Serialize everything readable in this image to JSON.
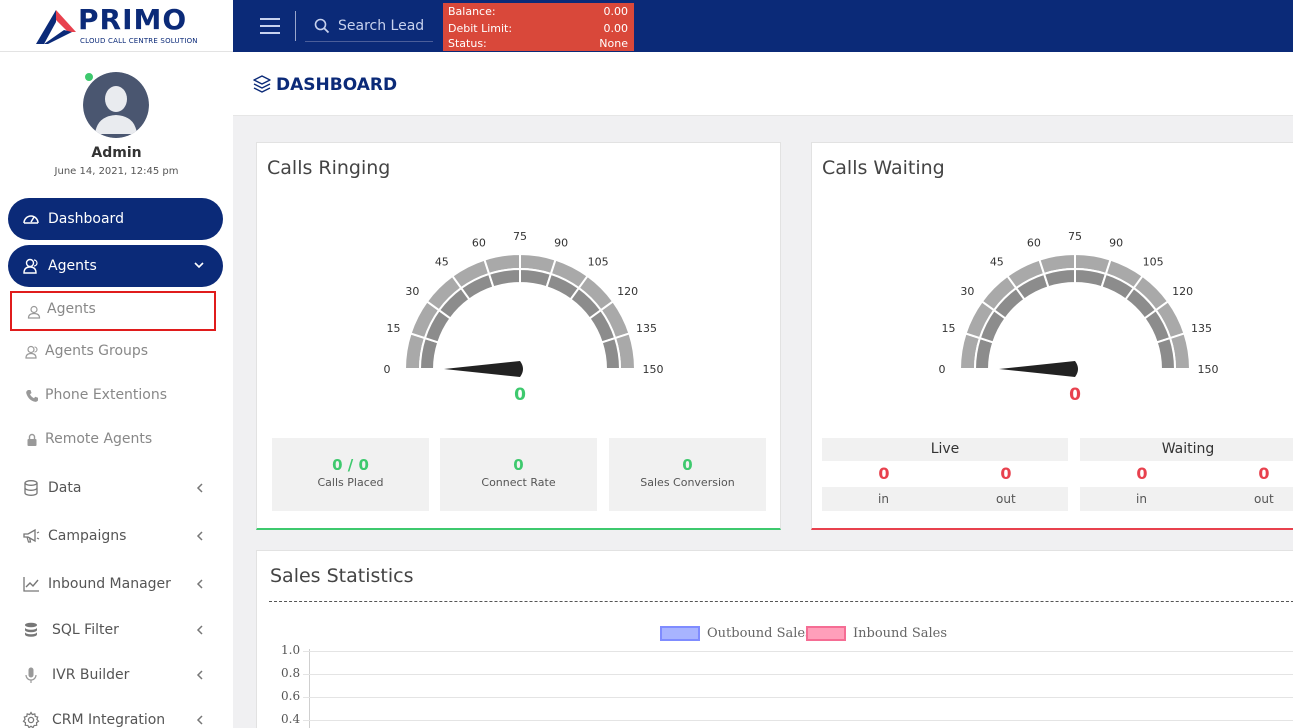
{
  "app": {
    "logo_text": "PRIMO",
    "logo_tagline": "CLOUD CALL CENTRE SOLUTION"
  },
  "topbar": {
    "search_placeholder": "Search Lead",
    "balance": [
      {
        "label": "Balance:",
        "value": "0.00"
      },
      {
        "label": "Debit Limit:",
        "value": "0.00"
      },
      {
        "label": "Status:",
        "value": "None"
      }
    ],
    "colors": {
      "bar": "#0b2a78",
      "balance_bg": "#d9483a"
    }
  },
  "user": {
    "name": "Admin",
    "datetime": "June 14, 2021, 12:45 pm",
    "status": "online"
  },
  "sidebar": {
    "dashboard": {
      "label": "Dashboard",
      "icon": "speedometer-icon"
    },
    "agents_group": {
      "label": "Agents",
      "icon": "users-icon",
      "expanded": true
    },
    "sub_items": [
      {
        "label": "Agents",
        "icon": "user-icon",
        "active": true
      },
      {
        "label": "Agents Groups",
        "icon": "users-icon"
      },
      {
        "label": "Phone Extentions",
        "icon": "phone-icon"
      },
      {
        "label": "Remote Agents",
        "icon": "lock-icon"
      }
    ],
    "items": [
      {
        "label": "Data",
        "icon": "database-icon"
      },
      {
        "label": "Campaigns",
        "icon": "megaphone-icon"
      },
      {
        "label": "Inbound Manager",
        "icon": "line-chart-icon"
      },
      {
        "label": "SQL Filter",
        "icon": "database-icon"
      },
      {
        "label": "IVR Builder",
        "icon": "microphone-icon"
      },
      {
        "label": "CRM Integration",
        "icon": "gear-icon"
      }
    ]
  },
  "page": {
    "title": "DASHBOARD",
    "icon": "layers-icon"
  },
  "calls_ringing": {
    "title": "Calls Ringing",
    "gauge": {
      "min": 0,
      "max": 150,
      "ticks": [
        "0",
        "15",
        "30",
        "45",
        "60",
        "75",
        "90",
        "105",
        "120",
        "135",
        "150"
      ],
      "value": "0"
    },
    "stats": [
      {
        "value": "0 / 0",
        "caption": "Calls Placed"
      },
      {
        "value": "0",
        "caption": "Connect Rate"
      },
      {
        "value": "0",
        "caption": "Sales Conversion"
      }
    ],
    "accent": "#3ec96e"
  },
  "calls_waiting": {
    "title": "Calls Waiting",
    "gauge": {
      "min": 0,
      "max": 150,
      "ticks": [
        "0",
        "15",
        "30",
        "45",
        "60",
        "75",
        "90",
        "105",
        "120",
        "135",
        "150"
      ],
      "value": "0"
    },
    "live": {
      "label": "Live",
      "in": "0",
      "out": "0",
      "in_label": "in",
      "out_label": "out"
    },
    "waiting": {
      "label": "Waiting",
      "in": "0",
      "out": "0",
      "in_label": "in",
      "out_label": "out"
    },
    "accent": "#e8414e"
  },
  "sales_statistics": {
    "title": "Sales Statistics",
    "chart_data": {
      "type": "area",
      "series": [
        {
          "name": "Outbound Sales",
          "color": "#a8b4ff"
        },
        {
          "name": "Inbound Sales",
          "color": "#ff9fba"
        }
      ],
      "y_ticks": [
        "1.0",
        "0.8",
        "0.6",
        "0.4"
      ],
      "legend": "top-center"
    }
  }
}
